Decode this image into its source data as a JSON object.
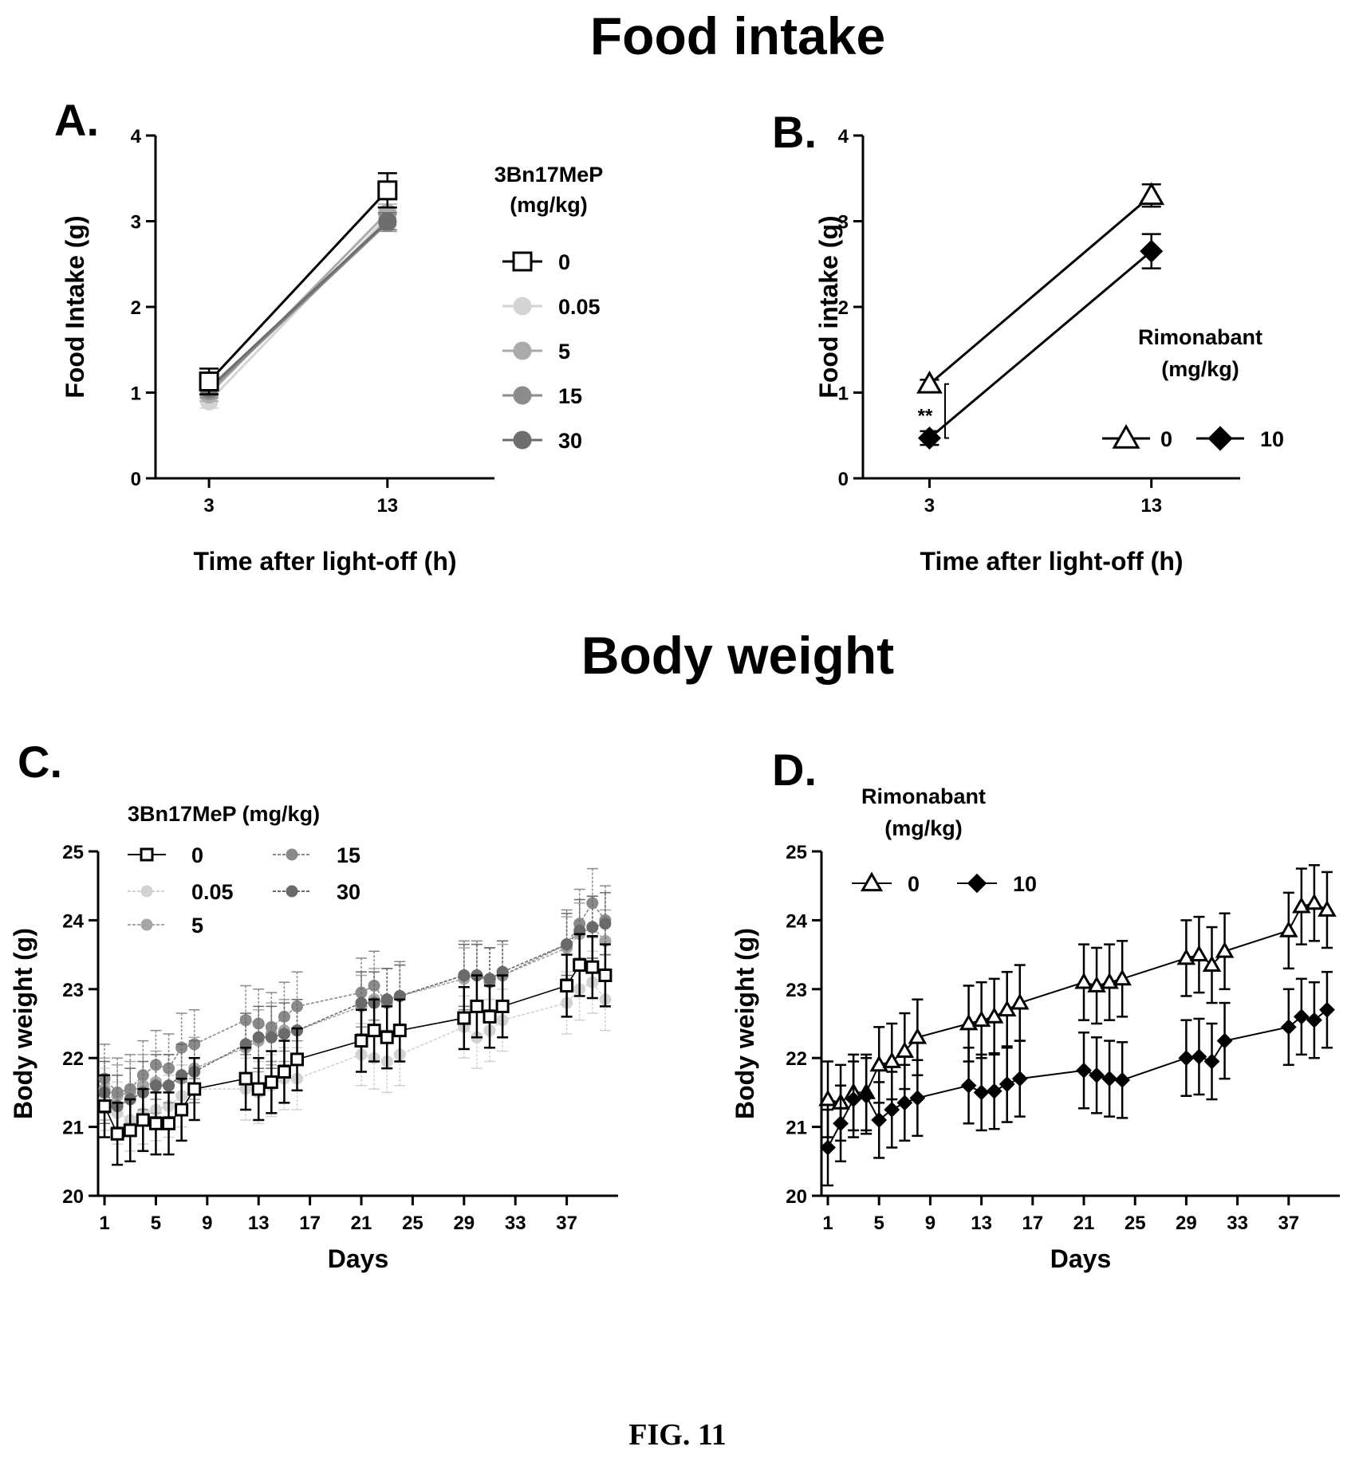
{
  "figure": {
    "caption": "FIG. 11",
    "section_titles": {
      "food": "Food intake",
      "body": "Body weight"
    }
  },
  "chart_data": [
    {
      "id": "A",
      "panel": "A.",
      "type": "line",
      "xlabel": "Time after light-off (h)",
      "ylabel": "Food Intake (g)",
      "x": [
        3,
        13
      ],
      "xticks": [
        "3",
        "13"
      ],
      "yticks": [
        "0",
        "1",
        "2",
        "3",
        "4"
      ],
      "ylim": [
        0,
        4
      ],
      "legend_title": "3Bn17MeP\n(mg/kg)",
      "legend_position": "right",
      "series": [
        {
          "name": "0",
          "values": [
            1.13,
            3.36
          ],
          "err": [
            0.15,
            0.2
          ],
          "marker": "square-open",
          "color": "#000000"
        },
        {
          "name": "0.05",
          "values": [
            0.9,
            3.05
          ],
          "err": [
            0.08,
            0.1
          ],
          "marker": "circle",
          "color": "#d4d4d4"
        },
        {
          "name": "5",
          "values": [
            0.98,
            3.1
          ],
          "err": [
            0.08,
            0.1
          ],
          "marker": "circle",
          "color": "#ababab"
        },
        {
          "name": "15",
          "values": [
            1.02,
            2.98
          ],
          "err": [
            0.08,
            0.1
          ],
          "marker": "circle",
          "color": "#8c8c8c"
        },
        {
          "name": "30",
          "values": [
            1.05,
            3.0
          ],
          "err": [
            0.08,
            0.1
          ],
          "marker": "circle",
          "color": "#6e6e6e"
        }
      ]
    },
    {
      "id": "B",
      "panel": "B.",
      "type": "line",
      "xlabel": "Time after light-off (h)",
      "ylabel": "Food intake (g)",
      "x": [
        3,
        13
      ],
      "xticks": [
        "3",
        "13"
      ],
      "yticks": [
        "0",
        "1",
        "2",
        "3",
        "4"
      ],
      "ylim": [
        0,
        4
      ],
      "legend_title": "Rimonabant\n(mg/kg)",
      "legend_position": "right",
      "annotation": "**",
      "series": [
        {
          "name": "0",
          "values": [
            1.1,
            3.3
          ],
          "err": [
            0.05,
            0.13
          ],
          "marker": "triangle-open",
          "color": "#000000"
        },
        {
          "name": "10",
          "values": [
            0.47,
            2.65
          ],
          "err": [
            0.08,
            0.2
          ],
          "marker": "diamond",
          "color": "#000000"
        }
      ]
    },
    {
      "id": "C",
      "panel": "C.",
      "type": "line",
      "xlabel": "Days",
      "ylabel": "Body weight (g)",
      "x": [
        1,
        2,
        3,
        4,
        5,
        6,
        7,
        8,
        12,
        13,
        14,
        15,
        16,
        21,
        22,
        23,
        24,
        29,
        30,
        31,
        32,
        37,
        38,
        39,
        40
      ],
      "xticks": [
        "1",
        "5",
        "9",
        "13",
        "17",
        "21",
        "25",
        "29",
        "33",
        "37"
      ],
      "yticks": [
        "20",
        "21",
        "22",
        "23",
        "24",
        "25"
      ],
      "ylim": [
        20,
        25
      ],
      "legend_title": "3Bn17MeP (mg/kg)",
      "legend_position": "top-left",
      "series": [
        {
          "name": "0",
          "marker": "square-open",
          "color": "#000000",
          "err": 0.45,
          "values": [
            21.3,
            20.9,
            20.95,
            21.1,
            21.05,
            21.05,
            21.25,
            21.55,
            21.7,
            21.55,
            21.65,
            21.8,
            21.98,
            22.25,
            22.4,
            22.3,
            22.4,
            22.58,
            22.75,
            22.6,
            22.75,
            23.05,
            23.35,
            23.32,
            23.2
          ]
        },
        {
          "name": "0.05",
          "marker": "circle",
          "color": "#d2d2d2",
          "err": 0.45,
          "values": [
            21.4,
            21.2,
            21.1,
            21.2,
            21.25,
            21.3,
            21.45,
            21.55,
            21.55,
            21.5,
            21.6,
            21.7,
            21.7,
            22.05,
            22.0,
            21.95,
            22.05,
            22.45,
            22.3,
            22.4,
            22.55,
            22.8,
            23.0,
            23.1,
            22.85
          ]
        },
        {
          "name": "5",
          "marker": "circle",
          "color": "#a6a6a6",
          "err": 0.45,
          "values": [
            21.55,
            21.45,
            21.5,
            21.6,
            21.65,
            21.6,
            21.7,
            21.85,
            22.15,
            22.25,
            22.35,
            22.4,
            22.4,
            22.75,
            22.85,
            22.85,
            22.9,
            23.15,
            23.2,
            23.15,
            23.2,
            23.6,
            23.8,
            23.9,
            23.7
          ]
        },
        {
          "name": "15",
          "marker": "circle",
          "color": "#8a8a8a",
          "err": 0.5,
          "values": [
            21.7,
            21.5,
            21.55,
            21.75,
            21.9,
            21.85,
            22.15,
            22.2,
            22.55,
            22.5,
            22.45,
            22.6,
            22.75,
            22.95,
            23.05,
            22.8,
            22.9,
            23.2,
            23.2,
            23.1,
            23.2,
            23.65,
            23.95,
            24.25,
            24.0
          ]
        },
        {
          "name": "30",
          "marker": "circle",
          "color": "#6a6a6a",
          "err": 0.45,
          "values": [
            21.5,
            21.3,
            21.4,
            21.5,
            21.6,
            21.6,
            21.75,
            21.8,
            22.2,
            22.3,
            22.3,
            22.35,
            22.4,
            22.8,
            22.8,
            22.85,
            22.9,
            23.2,
            23.2,
            23.15,
            23.25,
            23.65,
            23.85,
            23.9,
            23.95
          ]
        }
      ]
    },
    {
      "id": "D",
      "panel": "D.",
      "type": "line",
      "xlabel": "Days",
      "ylabel": "Body weight (g)",
      "x": [
        1,
        2,
        3,
        4,
        5,
        6,
        7,
        8,
        12,
        13,
        14,
        15,
        16,
        21,
        22,
        23,
        24,
        29,
        30,
        31,
        32,
        37,
        38,
        39,
        40
      ],
      "xticks": [
        "1",
        "5",
        "9",
        "13",
        "17",
        "21",
        "25",
        "29",
        "33",
        "37"
      ],
      "yticks": [
        "20",
        "21",
        "22",
        "23",
        "24",
        "25"
      ],
      "ylim": [
        20,
        25
      ],
      "legend_title": "Rimonabant\n(mg/kg)",
      "legend_position": "top-left",
      "series": [
        {
          "name": "0",
          "marker": "triangle-open",
          "color": "#000000",
          "err": 0.55,
          "values": [
            21.4,
            21.35,
            21.5,
            21.5,
            21.9,
            21.95,
            22.1,
            22.3,
            22.5,
            22.55,
            22.6,
            22.7,
            22.8,
            23.1,
            23.05,
            23.1,
            23.15,
            23.45,
            23.5,
            23.35,
            23.55,
            23.85,
            24.2,
            24.25,
            24.15
          ]
        },
        {
          "name": "10",
          "marker": "diamond",
          "color": "#000000",
          "err": 0.55,
          "values": [
            20.7,
            21.05,
            21.4,
            21.45,
            21.1,
            21.25,
            21.35,
            21.42,
            21.6,
            21.5,
            21.52,
            21.62,
            21.7,
            21.82,
            21.75,
            21.7,
            21.68,
            22.0,
            22.02,
            21.95,
            22.25,
            22.45,
            22.6,
            22.55,
            22.7
          ]
        }
      ]
    }
  ]
}
